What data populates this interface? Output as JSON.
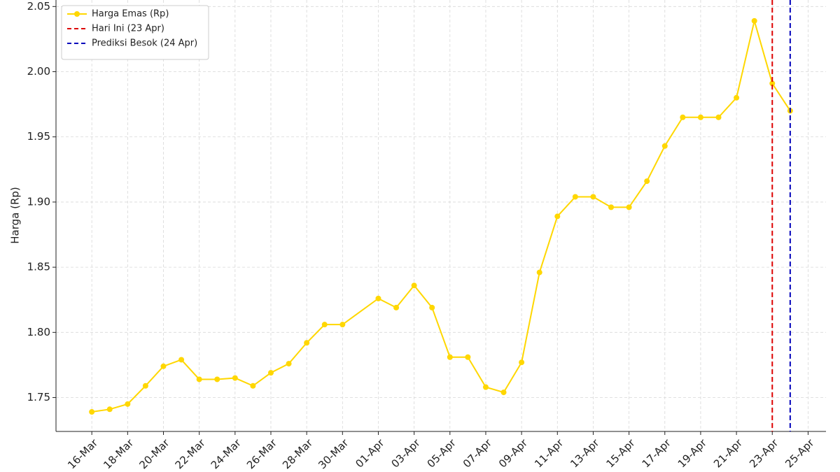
{
  "chart_data": {
    "type": "line",
    "y_label": "Harga (Rp)",
    "x": [
      "16-Mar",
      "17-Mar",
      "18-Mar",
      "19-Mar",
      "20-Mar",
      "21-Mar",
      "22-Mar",
      "23-Mar",
      "24-Mar",
      "25-Mar",
      "26-Mar",
      "27-Mar",
      "28-Mar",
      "29-Mar",
      "30-Mar",
      "01-Apr",
      "02-Apr",
      "03-Apr",
      "04-Apr",
      "05-Apr",
      "06-Apr",
      "07-Apr",
      "08-Apr",
      "09-Apr",
      "10-Apr",
      "11-Apr",
      "12-Apr",
      "13-Apr",
      "14-Apr",
      "15-Apr",
      "16-Apr",
      "17-Apr",
      "18-Apr",
      "19-Apr",
      "20-Apr",
      "21-Apr",
      "22-Apr",
      "23-Apr",
      "24-Apr"
    ],
    "series": [
      {
        "name": "Harga Emas (Rp)",
        "color": "#ffd700",
        "values": [
          1.739,
          1.741,
          1.745,
          1.759,
          1.774,
          1.779,
          1.764,
          1.764,
          1.765,
          1.759,
          1.769,
          1.776,
          1.792,
          1.806,
          1.806,
          1.826,
          1.819,
          1.836,
          1.819,
          1.781,
          1.781,
          1.758,
          1.754,
          1.777,
          1.846,
          1.889,
          1.904,
          1.904,
          1.896,
          1.896,
          1.916,
          1.943,
          1.965,
          1.965,
          1.965,
          1.98,
          2.039,
          1.991,
          1.97
        ]
      }
    ],
    "vlines": [
      {
        "name": "Hari Ini (23 Apr)",
        "color": "#dd0000",
        "x": "23-Apr"
      },
      {
        "name": "Prediksi Besok (24 Apr)",
        "color": "#0000bb",
        "x": "24-Apr"
      }
    ],
    "xlim": [
      "14-Mar",
      "26-Apr"
    ],
    "xticks": [
      "16-Mar",
      "18-Mar",
      "20-Mar",
      "22-Mar",
      "24-Mar",
      "26-Mar",
      "28-Mar",
      "30-Mar",
      "01-Apr",
      "03-Apr",
      "05-Apr",
      "07-Apr",
      "09-Apr",
      "11-Apr",
      "13-Apr",
      "15-Apr",
      "17-Apr",
      "19-Apr",
      "21-Apr",
      "23-Apr",
      "25-Apr"
    ],
    "ylim": [
      1.724,
      2.055
    ],
    "yticks": [
      1.75,
      {
        "value": 1.8,
        "label": "1.80"
      },
      1.85,
      {
        "value": 1.9,
        "label": "1.90"
      },
      1.95,
      {
        "value": 2.0,
        "label": "2.00"
      },
      2.05
    ],
    "grid": true,
    "legend": "upper left"
  }
}
